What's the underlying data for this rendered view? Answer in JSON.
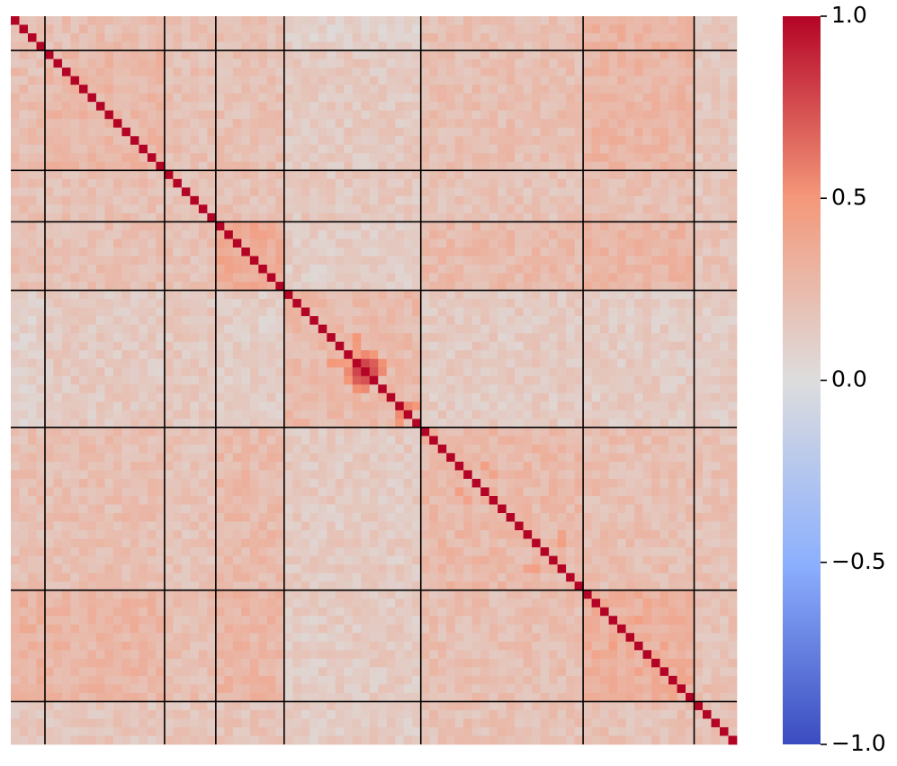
{
  "chart_data": {
    "type": "heatmap",
    "title": "",
    "xlabel": "",
    "ylabel": "",
    "n": 85,
    "block_boundaries": [
      4,
      18,
      24,
      32,
      48,
      67,
      80
    ],
    "colormap": "coolwarm",
    "colorbar": {
      "range": [
        -1.0,
        1.0
      ],
      "ticks": [
        1.0,
        0.5,
        0.0,
        -0.5,
        -1.0
      ],
      "tick_labels": [
        "1.0",
        "0.5",
        "0.0",
        "−0.5",
        "−1.0"
      ],
      "placement": "right"
    },
    "diagonal_value": 1.0,
    "block_mean_values": [
      [
        0.26,
        0.22,
        0.21,
        0.2,
        0.1,
        0.22,
        0.3,
        0.16
      ],
      [
        0.22,
        0.27,
        0.21,
        0.21,
        0.14,
        0.22,
        0.28,
        0.17
      ],
      [
        0.21,
        0.21,
        0.2,
        0.2,
        0.15,
        0.19,
        0.22,
        0.17
      ],
      [
        0.2,
        0.21,
        0.2,
        0.35,
        0.12,
        0.25,
        0.28,
        0.19
      ],
      [
        0.1,
        0.14,
        0.15,
        0.12,
        0.25,
        0.14,
        0.13,
        0.13
      ],
      [
        0.22,
        0.22,
        0.19,
        0.25,
        0.14,
        0.26,
        0.22,
        0.2
      ],
      [
        0.3,
        0.28,
        0.22,
        0.28,
        0.13,
        0.22,
        0.33,
        0.2
      ],
      [
        0.16,
        0.17,
        0.17,
        0.19,
        0.13,
        0.2,
        0.2,
        0.18
      ]
    ],
    "highlight_values": [
      {
        "row": 40,
        "col": 41,
        "value": 0.78
      },
      {
        "row": 40,
        "col": 42,
        "value": 0.7
      },
      {
        "row": 41,
        "col": 42,
        "value": 0.74
      },
      {
        "row": 39,
        "col": 41,
        "value": 0.55
      },
      {
        "row": 39,
        "col": 42,
        "value": 0.5
      },
      {
        "row": 41,
        "col": 43,
        "value": 0.55
      },
      {
        "row": 40,
        "col": 43,
        "value": 0.52
      },
      {
        "row": 39,
        "col": 40,
        "value": 0.45
      },
      {
        "row": 46,
        "col": 45,
        "value": 0.55
      },
      {
        "row": 47,
        "col": 45,
        "value": 0.5
      },
      {
        "row": 37,
        "col": 40,
        "value": 0.5
      },
      {
        "row": 38,
        "col": 40,
        "value": 0.48
      },
      {
        "row": 24,
        "col": 28,
        "value": 0.45
      },
      {
        "row": 25,
        "col": 28,
        "value": 0.42
      },
      {
        "row": 26,
        "col": 29,
        "value": 0.4
      },
      {
        "row": 52,
        "col": 55,
        "value": 0.45
      },
      {
        "row": 53,
        "col": 56,
        "value": 0.42
      },
      {
        "row": 61,
        "col": 64,
        "value": 0.45
      },
      {
        "row": 60,
        "col": 64,
        "value": 0.42
      },
      {
        "row": 70,
        "col": 73,
        "value": 0.45
      },
      {
        "row": 73,
        "col": 76,
        "value": 0.42
      },
      {
        "row": 76,
        "col": 78,
        "value": 0.4
      }
    ],
    "grid": false
  }
}
